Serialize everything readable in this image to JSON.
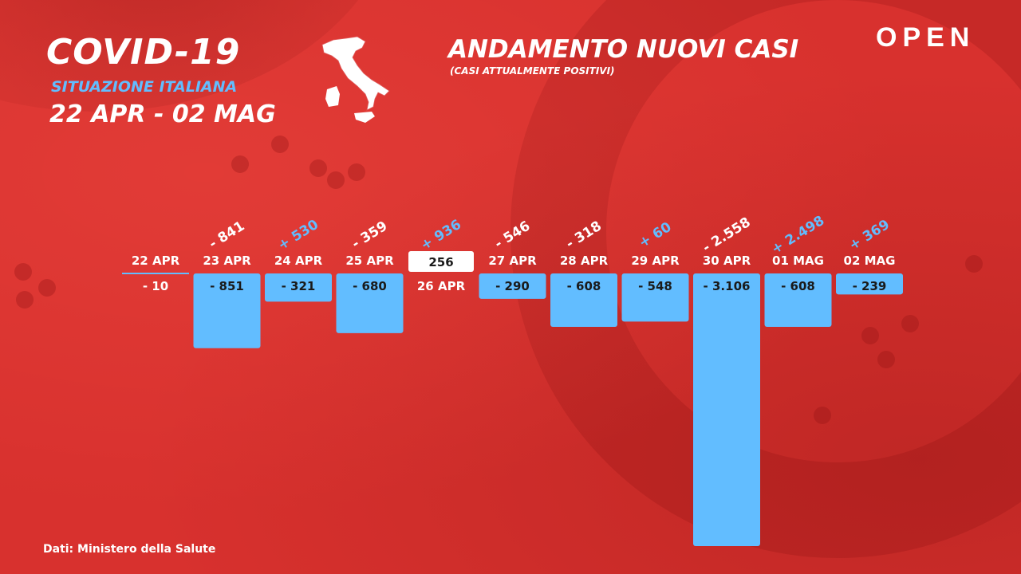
{
  "header": {
    "title": "COVID-19",
    "subtitle": "SITUAZIONE ITALIANA",
    "date_range": "22 APR - 02 MAG",
    "logo": "OPEN"
  },
  "icons": {
    "map": "italy-map-icon"
  },
  "footer": {
    "source": "Dati: Ministero della Salute"
  },
  "colors": {
    "background": "#d8312e",
    "bar": "#62bdff",
    "positive_delta": "#62bdff",
    "negative_delta": "#ffffff"
  },
  "chart_data": {
    "type": "bar",
    "title": "ANDAMENTO NUOVI CASI",
    "subtitle": "(CASI ATTUALMENTE POSITIVI)",
    "categories": [
      "22 APR",
      "23 APR",
      "24 APR",
      "25 APR",
      "26 APR",
      "27 APR",
      "28 APR",
      "29 APR",
      "30 APR",
      "01 MAG",
      "02 MAG"
    ],
    "values": [
      -10,
      -851,
      -321,
      -680,
      256,
      -290,
      -608,
      -548,
      -3106,
      -608,
      -239
    ],
    "value_labels": [
      "- 10",
      "- 851",
      "- 321",
      "- 680",
      "256",
      "- 290",
      "- 608",
      "- 548",
      "- 3.106",
      "- 608",
      "- 239"
    ],
    "deltas": [
      "",
      "- 841",
      "+ 530",
      "- 359",
      "+ 936",
      "- 546",
      "- 318",
      "+ 60",
      "- 2.558",
      "+ 2.498",
      "+ 369"
    ],
    "delta_signs": [
      "",
      "neg",
      "pos",
      "neg",
      "pos",
      "neg",
      "neg",
      "pos",
      "neg",
      "pos",
      "pos"
    ]
  }
}
